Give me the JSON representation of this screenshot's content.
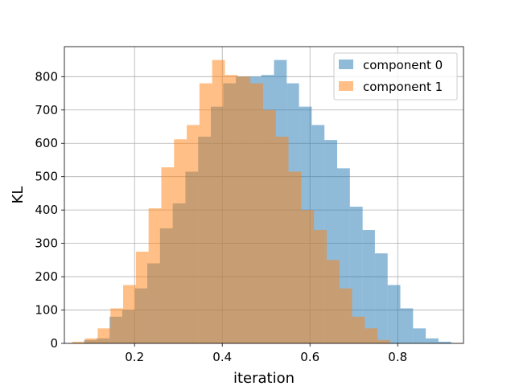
{
  "chart_data": {
    "type": "bar",
    "histogram": true,
    "xlabel": "iteration",
    "ylabel": "KL",
    "xlim": [
      0.04,
      0.95
    ],
    "ylim": [
      0,
      890
    ],
    "xticks": [
      "0.2",
      "0.4",
      "0.6",
      "0.8"
    ],
    "yticks": [
      "0",
      "100",
      "200",
      "300",
      "400",
      "500",
      "600",
      "700",
      "800"
    ],
    "grid": true,
    "legend_position": "top-right",
    "series": [
      {
        "name": "component 0",
        "color": "#1f77b4",
        "opacity": 0.5,
        "bins": [
          {
            "x0": 0.085,
            "x1": 0.114,
            "count": 10
          },
          {
            "x0": 0.114,
            "x1": 0.143,
            "count": 15
          },
          {
            "x0": 0.143,
            "x1": 0.172,
            "count": 80
          },
          {
            "x0": 0.172,
            "x1": 0.201,
            "count": 100
          },
          {
            "x0": 0.201,
            "x1": 0.229,
            "count": 165
          },
          {
            "x0": 0.229,
            "x1": 0.258,
            "count": 240
          },
          {
            "x0": 0.258,
            "x1": 0.287,
            "count": 345
          },
          {
            "x0": 0.287,
            "x1": 0.316,
            "count": 420
          },
          {
            "x0": 0.316,
            "x1": 0.345,
            "count": 515
          },
          {
            "x0": 0.345,
            "x1": 0.374,
            "count": 620
          },
          {
            "x0": 0.374,
            "x1": 0.402,
            "count": 710
          },
          {
            "x0": 0.402,
            "x1": 0.431,
            "count": 780
          },
          {
            "x0": 0.431,
            "x1": 0.46,
            "count": 800
          },
          {
            "x0": 0.46,
            "x1": 0.489,
            "count": 800
          },
          {
            "x0": 0.489,
            "x1": 0.518,
            "count": 805
          },
          {
            "x0": 0.518,
            "x1": 0.547,
            "count": 850
          },
          {
            "x0": 0.547,
            "x1": 0.575,
            "count": 780
          },
          {
            "x0": 0.575,
            "x1": 0.604,
            "count": 710
          },
          {
            "x0": 0.604,
            "x1": 0.633,
            "count": 655
          },
          {
            "x0": 0.633,
            "x1": 0.662,
            "count": 610
          },
          {
            "x0": 0.662,
            "x1": 0.691,
            "count": 525
          },
          {
            "x0": 0.691,
            "x1": 0.72,
            "count": 410
          },
          {
            "x0": 0.72,
            "x1": 0.748,
            "count": 340
          },
          {
            "x0": 0.748,
            "x1": 0.777,
            "count": 270
          },
          {
            "x0": 0.777,
            "x1": 0.806,
            "count": 175
          },
          {
            "x0": 0.806,
            "x1": 0.835,
            "count": 105
          },
          {
            "x0": 0.835,
            "x1": 0.864,
            "count": 45
          },
          {
            "x0": 0.864,
            "x1": 0.893,
            "count": 15
          },
          {
            "x0": 0.893,
            "x1": 0.922,
            "count": 5
          }
        ]
      },
      {
        "name": "component 1",
        "color": "#ff7f0e",
        "opacity": 0.5,
        "bins": [
          {
            "x0": 0.058,
            "x1": 0.087,
            "count": 5
          },
          {
            "x0": 0.087,
            "x1": 0.116,
            "count": 15
          },
          {
            "x0": 0.116,
            "x1": 0.145,
            "count": 45
          },
          {
            "x0": 0.145,
            "x1": 0.174,
            "count": 105
          },
          {
            "x0": 0.174,
            "x1": 0.203,
            "count": 175
          },
          {
            "x0": 0.203,
            "x1": 0.232,
            "count": 275
          },
          {
            "x0": 0.232,
            "x1": 0.261,
            "count": 405
          },
          {
            "x0": 0.261,
            "x1": 0.29,
            "count": 528
          },
          {
            "x0": 0.29,
            "x1": 0.319,
            "count": 612
          },
          {
            "x0": 0.319,
            "x1": 0.348,
            "count": 655
          },
          {
            "x0": 0.348,
            "x1": 0.377,
            "count": 780
          },
          {
            "x0": 0.377,
            "x1": 0.406,
            "count": 850
          },
          {
            "x0": 0.406,
            "x1": 0.435,
            "count": 805
          },
          {
            "x0": 0.435,
            "x1": 0.464,
            "count": 800
          },
          {
            "x0": 0.464,
            "x1": 0.493,
            "count": 780
          },
          {
            "x0": 0.493,
            "x1": 0.522,
            "count": 700
          },
          {
            "x0": 0.522,
            "x1": 0.551,
            "count": 620
          },
          {
            "x0": 0.551,
            "x1": 0.58,
            "count": 515
          },
          {
            "x0": 0.58,
            "x1": 0.609,
            "count": 400
          },
          {
            "x0": 0.609,
            "x1": 0.638,
            "count": 340
          },
          {
            "x0": 0.638,
            "x1": 0.667,
            "count": 250
          },
          {
            "x0": 0.667,
            "x1": 0.696,
            "count": 165
          },
          {
            "x0": 0.696,
            "x1": 0.725,
            "count": 80
          },
          {
            "x0": 0.725,
            "x1": 0.754,
            "count": 45
          },
          {
            "x0": 0.754,
            "x1": 0.783,
            "count": 10
          }
        ]
      }
    ]
  }
}
